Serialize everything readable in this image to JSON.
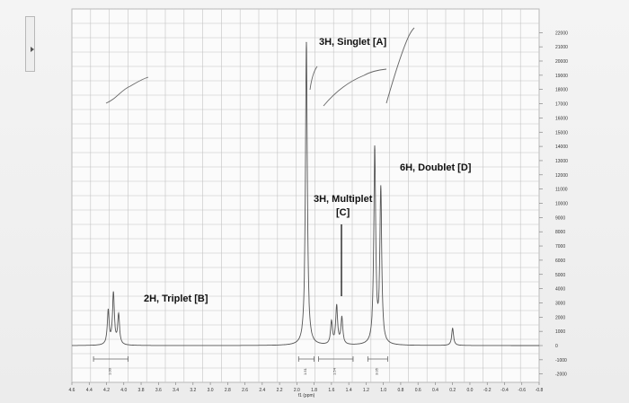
{
  "chart_data": {
    "type": "line",
    "xlabel": "f1 (ppm)",
    "x_ticks": [
      "4.6",
      "4.4",
      "4.2",
      "4.0",
      "3.8",
      "3.6",
      "3.4",
      "3.2",
      "3.0",
      "2.8",
      "2.6",
      "2.4",
      "2.2",
      "2.0",
      "1.8",
      "1.6",
      "1.4",
      "1.2",
      "1.0",
      "0.8",
      "0.6",
      "0.4",
      "0.2",
      "0.0",
      "-0.2",
      "-0.4",
      "-0.6",
      "-0.8"
    ],
    "xlim": [
      4.6,
      -0.8
    ],
    "y_ticks": [
      "-2000",
      "-1000",
      "0",
      "1000",
      "2000",
      "3000",
      "4000",
      "5000",
      "6000",
      "7000",
      "8000",
      "9000",
      "10000",
      "11000",
      "12000",
      "13000",
      "14000",
      "15000",
      "16000",
      "17000",
      "18000",
      "19000",
      "20000",
      "21000",
      "22000"
    ],
    "ylim": [
      -2000,
      22000
    ],
    "grid": true,
    "peaks": [
      {
        "ppm": 4.18,
        "height": 2400
      },
      {
        "ppm": 4.12,
        "height": 3600
      },
      {
        "ppm": 4.06,
        "height": 2100
      },
      {
        "ppm": 1.89,
        "height": 21300
      },
      {
        "ppm": 1.6,
        "height": 1600
      },
      {
        "ppm": 1.54,
        "height": 2700
      },
      {
        "ppm": 1.48,
        "height": 1900
      },
      {
        "ppm": 1.1,
        "height": 13700
      },
      {
        "ppm": 1.03,
        "height": 10800
      },
      {
        "ppm": 0.2,
        "height": 1200
      }
    ],
    "annotations": [
      {
        "text": "3H, Singlet [A]"
      },
      {
        "text": "6H, Doublet [D]"
      },
      {
        "text": "3H, Multiplet"
      },
      {
        "text": "[C]"
      },
      {
        "text": "2H, Triplet [B]"
      }
    ],
    "integrals": [
      "1.00",
      "1.51",
      "1.54",
      "3.05"
    ]
  }
}
